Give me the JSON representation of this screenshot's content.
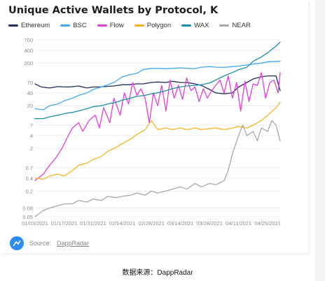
{
  "title": "Unique Active Wallets by Protocol, K",
  "source": {
    "label": "Source:",
    "name": "DappRadar"
  },
  "caption": {
    "prefix": "数据来源：",
    "name": "DappRadar"
  },
  "colors": {
    "Ethereum": "#1f2d5c",
    "BSC": "#3fa9f5",
    "Flow": "#e040d8",
    "Polygon": "#f5b323",
    "WAX": "#1a8fa8",
    "NEAR": "#a8a8a8",
    "grid": "#e6e6e6",
    "axis_text": "#888888",
    "logo": "#2d8cf0"
  },
  "chart_data": {
    "type": "line",
    "title": "Unique Active Wallets by Protocol, K",
    "xlabel": "",
    "ylabel": "",
    "y_scale": "log",
    "ylim": [
      0.05,
      700
    ],
    "x_range": [
      "2021-01-03",
      "2021-05-01"
    ],
    "y_ticks": [
      0.05,
      0.08,
      0.2,
      0.4,
      0.7,
      2,
      4,
      7,
      20,
      40,
      70,
      200,
      400,
      700
    ],
    "y_tick_labels": [
      "0.05",
      "0.08",
      "0.2",
      "0.4",
      "0.7",
      "2",
      "4",
      "7",
      "20",
      "40",
      "70",
      "200",
      "400",
      "700"
    ],
    "x_ticks": [
      "2021-01-03",
      "2021-01-17",
      "2021-01-31",
      "2021-02-14",
      "2021-02-28",
      "2021-03-14",
      "2021-03-28",
      "2021-04-11",
      "2021-04-25"
    ],
    "x_tick_labels": [
      "01/03/2021",
      "01/17/2021",
      "01/31/2021",
      "02/14/2021",
      "02/28/2021",
      "03/14/2021",
      "03/28/2021",
      "04/11/2021",
      "04/25/2021"
    ],
    "grid": true,
    "legend_position": "top",
    "series": [
      {
        "name": "Ethereum",
        "x": [
          "2021-01-03",
          "2021-01-06",
          "2021-01-10",
          "2021-01-14",
          "2021-01-17",
          "2021-01-20",
          "2021-01-24",
          "2021-01-28",
          "2021-01-31",
          "2021-02-03",
          "2021-02-07",
          "2021-02-10",
          "2021-02-14",
          "2021-02-17",
          "2021-02-21",
          "2021-02-24",
          "2021-02-28",
          "2021-03-03",
          "2021-03-07",
          "2021-03-10",
          "2021-03-14",
          "2021-03-17",
          "2021-03-21",
          "2021-03-24",
          "2021-03-28",
          "2021-03-31",
          "2021-04-04",
          "2021-04-08",
          "2021-04-11",
          "2021-04-15",
          "2021-04-18",
          "2021-04-22",
          "2021-04-25",
          "2021-04-29",
          "2021-05-01"
        ],
        "values": [
          65,
          55,
          52,
          56,
          55,
          55,
          58,
          52,
          55,
          55,
          57,
          58,
          62,
          62,
          65,
          65,
          70,
          72,
          70,
          75,
          70,
          70,
          65,
          60,
          48,
          40,
          38,
          40,
          55,
          70,
          85,
          95,
          100,
          100,
          45
        ]
      },
      {
        "name": "BSC",
        "x": [
          "2021-01-03",
          "2021-01-07",
          "2021-01-10",
          "2021-01-14",
          "2021-01-17",
          "2021-01-21",
          "2021-01-24",
          "2021-01-28",
          "2021-01-31",
          "2021-02-04",
          "2021-02-07",
          "2021-02-10",
          "2021-02-14",
          "2021-02-17",
          "2021-02-21",
          "2021-02-24",
          "2021-02-28",
          "2021-03-03",
          "2021-03-07",
          "2021-03-10",
          "2021-03-14",
          "2021-03-17",
          "2021-03-21",
          "2021-03-24",
          "2021-03-28",
          "2021-03-31",
          "2021-04-04",
          "2021-04-08",
          "2021-04-11",
          "2021-04-15",
          "2021-04-18",
          "2021-04-22",
          "2021-04-25",
          "2021-05-01"
        ],
        "values": [
          17,
          16,
          20,
          22,
          26,
          30,
          35,
          40,
          48,
          55,
          62,
          70,
          95,
          105,
          115,
          140,
          150,
          150,
          148,
          150,
          155,
          150,
          148,
          160,
          165,
          160,
          158,
          165,
          170,
          180,
          190,
          200,
          215,
          220
        ]
      },
      {
        "name": "Flow",
        "x": [
          "2021-01-03",
          "2021-01-07",
          "2021-01-10",
          "2021-01-13",
          "2021-01-16",
          "2021-01-19",
          "2021-01-21",
          "2021-01-24",
          "2021-01-26",
          "2021-01-29",
          "2021-02-01",
          "2021-02-03",
          "2021-02-05",
          "2021-02-08",
          "2021-02-10",
          "2021-02-13",
          "2021-02-15",
          "2021-02-17",
          "2021-02-19",
          "2021-02-21",
          "2021-02-23",
          "2021-02-25",
          "2021-02-27",
          "2021-03-01",
          "2021-03-03",
          "2021-03-05",
          "2021-03-07",
          "2021-03-09",
          "2021-03-11",
          "2021-03-13",
          "2021-03-15",
          "2021-03-17",
          "2021-03-19",
          "2021-03-21",
          "2021-03-23",
          "2021-03-25",
          "2021-03-27",
          "2021-03-29",
          "2021-03-31",
          "2021-04-02",
          "2021-04-04",
          "2021-04-06",
          "2021-04-08",
          "2021-04-10",
          "2021-04-12",
          "2021-04-14",
          "2021-04-16",
          "2021-04-18",
          "2021-04-20",
          "2021-04-22",
          "2021-04-24",
          "2021-04-26",
          "2021-04-28",
          "2021-04-30",
          "2021-05-01"
        ],
        "values": [
          0.35,
          0.5,
          0.8,
          1.2,
          2,
          4,
          6,
          8,
          5,
          9,
          12,
          6,
          18,
          8,
          30,
          12,
          40,
          22,
          70,
          35,
          50,
          30,
          8,
          40,
          20,
          60,
          15,
          80,
          30,
          60,
          28,
          90,
          45,
          55,
          25,
          50,
          30,
          45,
          60,
          80,
          40,
          100,
          30,
          70,
          15,
          75,
          25,
          65,
          60,
          120,
          30,
          70,
          80,
          40,
          120
        ]
      },
      {
        "name": "Polygon",
        "x": [
          "2021-01-03",
          "2021-01-07",
          "2021-01-10",
          "2021-01-14",
          "2021-01-17",
          "2021-01-21",
          "2021-01-24",
          "2021-01-28",
          "2021-01-31",
          "2021-02-04",
          "2021-02-07",
          "2021-02-11",
          "2021-02-14",
          "2021-02-18",
          "2021-02-21",
          "2021-02-25",
          "2021-02-28",
          "2021-03-03",
          "2021-03-07",
          "2021-03-10",
          "2021-03-14",
          "2021-03-17",
          "2021-03-21",
          "2021-03-24",
          "2021-03-28",
          "2021-03-31",
          "2021-04-04",
          "2021-04-08",
          "2021-04-11",
          "2021-04-15",
          "2021-04-18",
          "2021-04-22",
          "2021-04-25",
          "2021-04-29",
          "2021-05-01"
        ],
        "values": [
          0.4,
          0.38,
          0.45,
          0.5,
          0.45,
          0.6,
          0.8,
          0.9,
          1.1,
          1.3,
          1.7,
          2.1,
          2.6,
          3.3,
          4.2,
          5.5,
          9,
          5.5,
          6,
          5.5,
          6,
          5.5,
          6,
          5.5,
          5.8,
          6,
          5.5,
          6,
          6.5,
          6,
          7,
          9,
          12,
          18,
          24
        ]
      },
      {
        "name": "WAX",
        "x": [
          "2021-01-03",
          "2021-01-07",
          "2021-01-10",
          "2021-01-14",
          "2021-01-17",
          "2021-01-21",
          "2021-01-24",
          "2021-01-28",
          "2021-01-31",
          "2021-02-04",
          "2021-02-07",
          "2021-02-11",
          "2021-02-14",
          "2021-02-18",
          "2021-02-21",
          "2021-02-25",
          "2021-02-28",
          "2021-03-03",
          "2021-03-07",
          "2021-03-10",
          "2021-03-14",
          "2021-03-17",
          "2021-03-21",
          "2021-03-24",
          "2021-03-28",
          "2021-03-31",
          "2021-04-04",
          "2021-04-08",
          "2021-04-11",
          "2021-04-15",
          "2021-04-18",
          "2021-04-22",
          "2021-04-25",
          "2021-04-29",
          "2021-05-01"
        ],
        "values": [
          10,
          10,
          11,
          12,
          13,
          14,
          15,
          17,
          19,
          20,
          22,
          24,
          27,
          30,
          33,
          35,
          38,
          40,
          45,
          50,
          55,
          58,
          60,
          62,
          68,
          80,
          100,
          120,
          140,
          160,
          220,
          280,
          350,
          500,
          620
        ]
      },
      {
        "name": "NEAR",
        "x": [
          "2021-01-03",
          "2021-01-07",
          "2021-01-10",
          "2021-01-14",
          "2021-01-17",
          "2021-01-21",
          "2021-01-24",
          "2021-01-28",
          "2021-01-31",
          "2021-02-04",
          "2021-02-07",
          "2021-02-11",
          "2021-02-14",
          "2021-02-18",
          "2021-02-21",
          "2021-02-25",
          "2021-02-28",
          "2021-03-03",
          "2021-03-07",
          "2021-03-10",
          "2021-03-14",
          "2021-03-17",
          "2021-03-21",
          "2021-03-24",
          "2021-03-28",
          "2021-03-31",
          "2021-04-04",
          "2021-04-06",
          "2021-04-08",
          "2021-04-11",
          "2021-04-13",
          "2021-04-15",
          "2021-04-18",
          "2021-04-20",
          "2021-04-22",
          "2021-04-25",
          "2021-04-27",
          "2021-04-29",
          "2021-05-01"
        ],
        "values": [
          0.05,
          0.07,
          0.08,
          0.09,
          0.1,
          0.1,
          0.12,
          0.11,
          0.13,
          0.12,
          0.15,
          0.14,
          0.15,
          0.16,
          0.18,
          0.16,
          0.2,
          0.18,
          0.2,
          0.22,
          0.25,
          0.22,
          0.3,
          0.25,
          0.3,
          0.28,
          0.35,
          0.6,
          1.5,
          4,
          7,
          4,
          5,
          3,
          6,
          5,
          9,
          7,
          3
        ]
      }
    ]
  }
}
